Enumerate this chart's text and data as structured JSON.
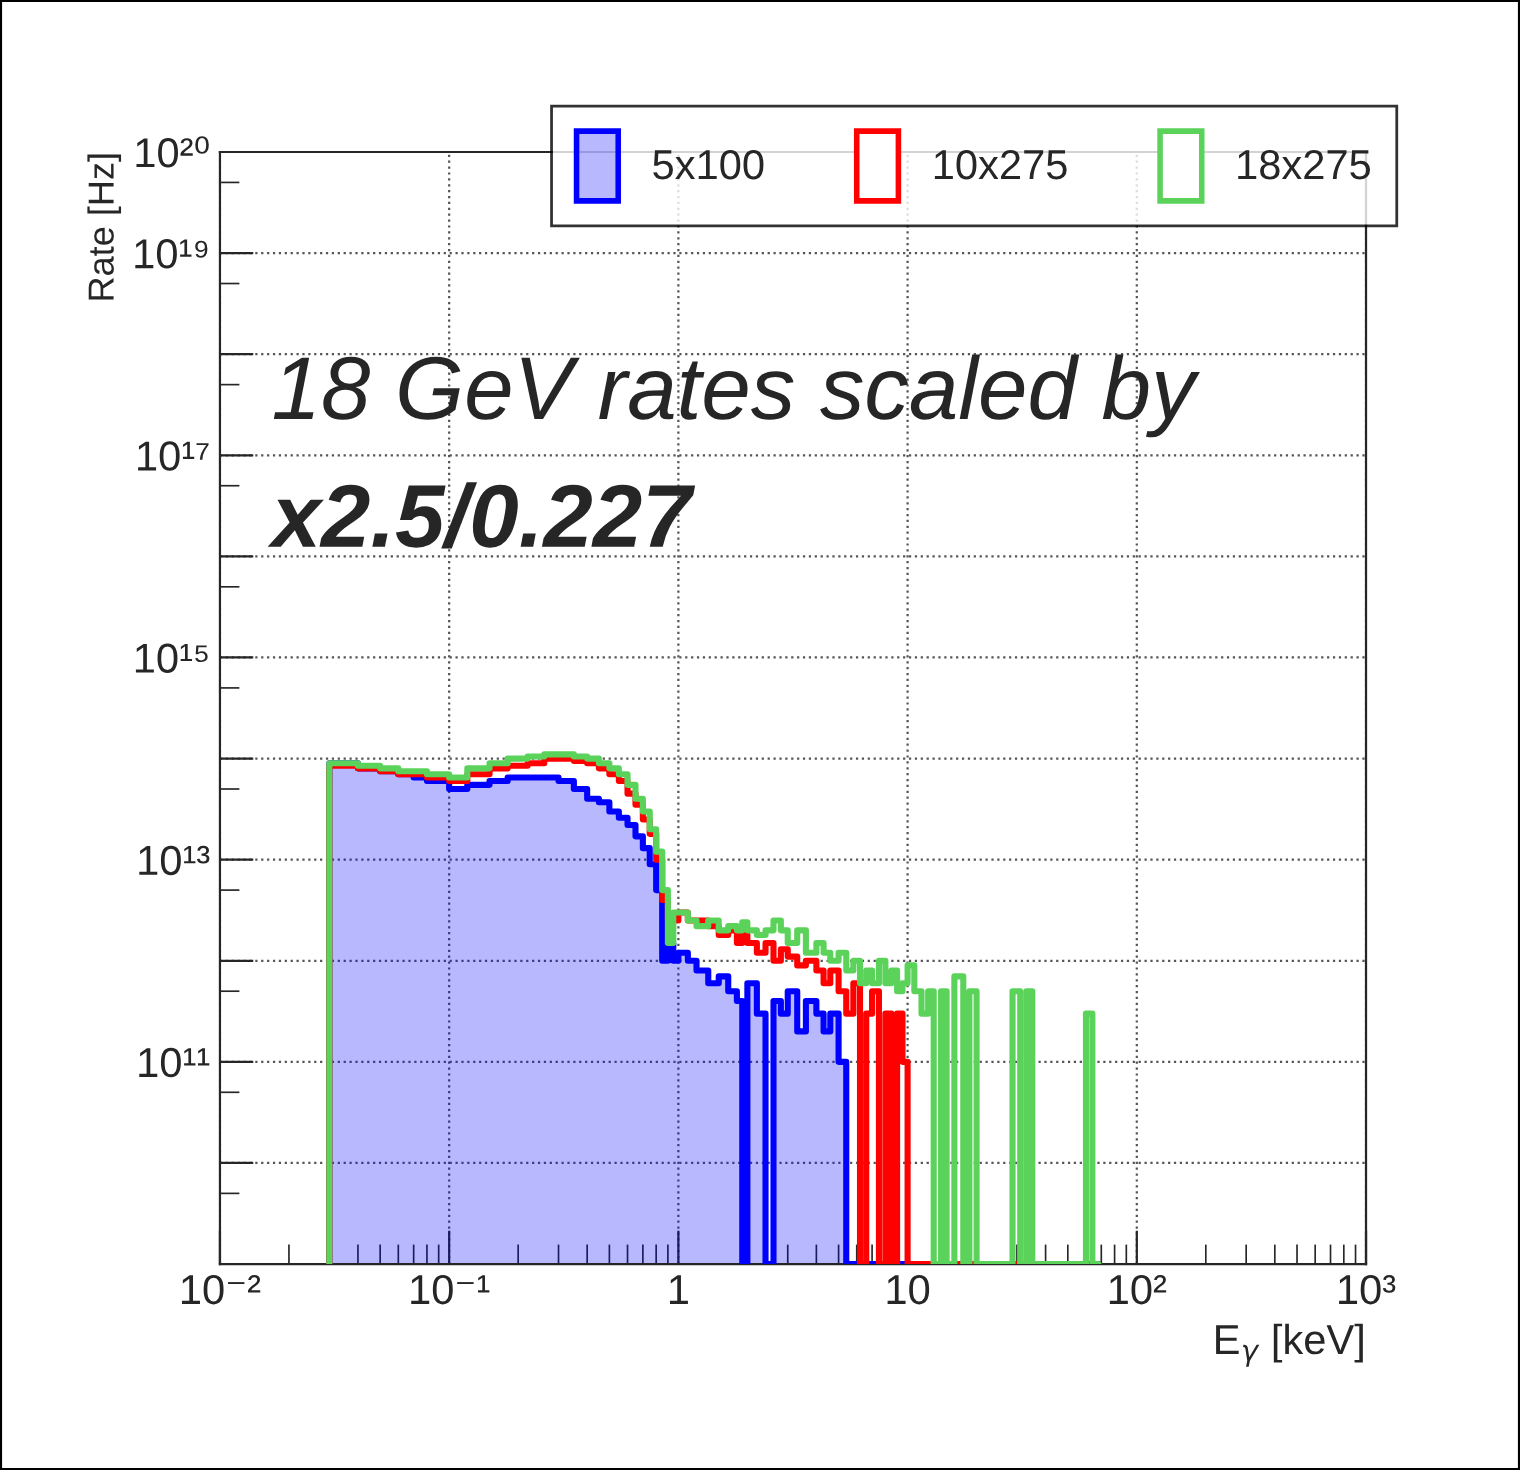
{
  "chart_data": {
    "type": "histogram",
    "xlabel": "E$_{γ}$ [keV]",
    "ylabel": "Rate [Hz]",
    "log": "xy",
    "grid": true,
    "legend": "top right",
    "xlim": [
      0.01,
      1000
    ],
    "ylim": [
      1000000000.0,
      1e+20
    ],
    "xticks": [
      {
        "value": 0.01,
        "label": "10⁻²"
      },
      {
        "value": 0.1,
        "label": "10⁻¹"
      },
      1,
      10,
      {
        "value": 100,
        "label": "10²"
      },
      {
        "value": 1000,
        "label": "10³"
      }
    ],
    "yticks": [
      {
        "value": 10000000000.0,
        "label": null
      },
      {
        "value": 100000000000.0,
        "label": "10¹¹"
      },
      {
        "value": 1000000000000.0,
        "label": null
      },
      {
        "value": 10000000000000.0,
        "label": "10¹³"
      },
      {
        "value": 100000000000000.0,
        "label": null
      },
      {
        "value": 1000000000000000.0,
        "label": "10¹⁵"
      },
      {
        "value": 1e+16,
        "label": null
      },
      {
        "value": 1e+17,
        "label": "10¹⁷"
      },
      {
        "value": 1e+18,
        "label": null
      },
      {
        "value": 1e+19,
        "label": "10¹⁹"
      },
      {
        "value": 1e+20,
        "label": "10²⁰"
      }
    ],
    "annotations": [
      "18 GeV rates scaled by",
      "x2.5/0.227"
    ],
    "bins": [
      0.03,
      0.04,
      0.05,
      0.06,
      0.07,
      0.08,
      0.1,
      0.12,
      0.15,
      0.18,
      0.22,
      0.26,
      0.3,
      0.35,
      0.4,
      0.45,
      0.5,
      0.55,
      0.6,
      0.65,
      0.7,
      0.75,
      0.8,
      0.85,
      0.9,
      0.95,
      1.0,
      1.1,
      1.2,
      1.35,
      1.5,
      1.65,
      1.8,
      1.9,
      2.0,
      2.2,
      2.4,
      2.6,
      2.8,
      3.0,
      3.3,
      3.6,
      4.0,
      4.3,
      4.6,
      5.0,
      5.4,
      5.8,
      6.2,
      6.6,
      7.0,
      7.5,
      8.0,
      8.5,
      9.0,
      9.5,
      10,
      10.7,
      11.5,
      12.3,
      13,
      14,
      14.8,
      16,
      17.5,
      18.6,
      20,
      26,
      28.7,
      31,
      33,
      35,
      37,
      60,
      64,
      68
    ],
    "series": [
      {
        "name": "5x100",
        "color": "#0000ff",
        "values": [
          90000000000000.0,
          80000000000000.0,
          75000000000000.0,
          70000000000000.0,
          65000000000000.0,
          60000000000000.0,
          50000000000000.0,
          55000000000000.0,
          60000000000000.0,
          65000000000000.0,
          65000000000000.0,
          65000000000000.0,
          60000000000000.0,
          50000000000000.0,
          40000000000000.0,
          37000000000000.0,
          30000000000000.0,
          26000000000000.0,
          22000000000000.0,
          17000000000000.0,
          13000000000000.0,
          9000000000000.0,
          5000000000000.0,
          1000000000000.0,
          1500000000000.0,
          1000000000000.0,
          1200000000000.0,
          1000000000000.0,
          800000000000.0,
          600000000000.0,
          700000000000.0,
          500000000000.0,
          400000000000.0,
          null,
          600000000000.0,
          300000000000.0,
          null,
          400000000000.0,
          300000000000.0,
          500000000000.0,
          200000000000.0,
          400000000000.0,
          300000000000.0,
          200000000000.0,
          300000000000.0,
          100000000000.0,
          null,
          null,
          null,
          null,
          null,
          null,
          null,
          null,
          null,
          null,
          null,
          null,
          null,
          null,
          null,
          null,
          null,
          null,
          null,
          null,
          null,
          null,
          null,
          null,
          null,
          null,
          null,
          null,
          null
        ]
      },
      {
        "name": "10x275",
        "color": "#ff0000",
        "values": [
          85000000000000.0,
          80000000000000.0,
          75000000000000.0,
          70000000000000.0,
          70000000000000.0,
          65000000000000.0,
          60000000000000.0,
          70000000000000.0,
          80000000000000.0,
          85000000000000.0,
          90000000000000.0,
          100000000000000.0,
          100000000000000.0,
          95000000000000.0,
          90000000000000.0,
          80000000000000.0,
          70000000000000.0,
          60000000000000.0,
          45000000000000.0,
          35000000000000.0,
          25000000000000.0,
          18000000000000.0,
          10000000000000.0,
          4000000000000.0,
          2500000000000.0,
          2500000000000.0,
          3000000000000.0,
          2500000000000.0,
          2500000000000.0,
          2200000000000.0,
          1800000000000.0,
          2000000000000.0,
          1500000000000.0,
          1800000000000.0,
          1500000000000.0,
          1200000000000.0,
          1500000000000.0,
          1000000000000.0,
          1300000000000.0,
          1100000000000.0,
          900000000000.0,
          1000000000000.0,
          800000000000.0,
          600000000000.0,
          800000000000.0,
          500000000000.0,
          300000000000.0,
          600000000000.0,
          null,
          300000000000.0,
          500000000000.0,
          null,
          300000000000.0,
          null,
          300000000000.0,
          100000000000.0,
          null,
          null,
          null,
          null,
          null,
          null,
          null,
          null,
          null,
          null,
          null,
          null,
          null,
          null,
          null,
          null,
          null,
          null,
          null
        ]
      },
      {
        "name": "18x275",
        "color": "#5bd35b",
        "values": [
          90000000000000.0,
          85000000000000.0,
          80000000000000.0,
          75000000000000.0,
          75000000000000.0,
          70000000000000.0,
          65000000000000.0,
          80000000000000.0,
          90000000000000.0,
          100000000000000.0,
          105000000000000.0,
          110000000000000.0,
          110000000000000.0,
          105000000000000.0,
          100000000000000.0,
          90000000000000.0,
          80000000000000.0,
          70000000000000.0,
          55000000000000.0,
          40000000000000.0,
          30000000000000.0,
          20000000000000.0,
          12000000000000.0,
          5000000000000.0,
          1500000000000.0,
          3000000000000.0,
          3000000000000.0,
          2500000000000.0,
          2200000000000.0,
          2500000000000.0,
          2000000000000.0,
          2200000000000.0,
          2000000000000.0,
          2400000000000.0,
          2000000000000.0,
          1800000000000.0,
          2000000000000.0,
          2500000000000.0,
          2000000000000.0,
          1500000000000.0,
          2000000000000.0,
          1200000000000.0,
          1500000000000.0,
          1200000000000.0,
          1000000000000.0,
          1200000000000.0,
          800000000000.0,
          1000000000000.0,
          600000000000.0,
          800000000000.0,
          600000000000.0,
          1000000000000.0,
          600000000000.0,
          800000000000.0,
          500000000000.0,
          600000000000.0,
          900000000000.0,
          500000000000.0,
          300000000000.0,
          500000000000.0,
          null,
          500000000000.0,
          null,
          700000000000.0,
          null,
          500000000000.0,
          null,
          null,
          500000000000.0,
          null,
          500000000000.0,
          null,
          null,
          300000000000.0,
          null
        ]
      }
    ]
  }
}
